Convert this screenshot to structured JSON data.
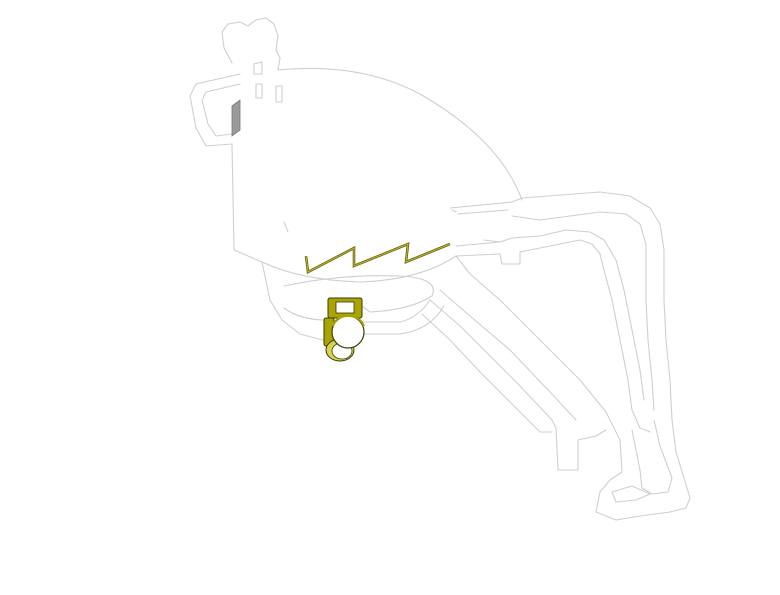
{
  "colors": {
    "background": "#ffffff",
    "outline": "#cfcfcf",
    "accent_fill": "#a8a400",
    "accent_stroke": "#3a3a10",
    "zigzag": "#6e6a10",
    "side_tab": "#9a9a9a"
  },
  "parts": [
    "frame-outline",
    "side-tab",
    "zigzag-spring",
    "clamp-assembly"
  ]
}
